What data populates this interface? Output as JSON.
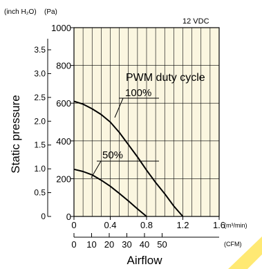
{
  "chart_data": {
    "type": "line",
    "title": "",
    "note": "12 VDC",
    "xlabel": "Airflow",
    "ylabel": "Static pressure",
    "background": "#fbf6e0",
    "line_color": "#000000",
    "watermark_color": "#ffd700",
    "x_axis_primary": {
      "unit": "(m³/min)",
      "range": [
        0,
        1.6
      ],
      "ticks": [
        {
          "value": 0,
          "label": "0"
        },
        {
          "value": 0.4,
          "label": "0.4"
        },
        {
          "value": 0.8,
          "label": "0.8"
        },
        {
          "value": 1.2,
          "label": "1.2"
        },
        {
          "value": 1.6,
          "label": "1.6"
        }
      ]
    },
    "x_axis_secondary": {
      "unit": "(CFM)",
      "ticks": [
        "0",
        "10",
        "20",
        "30",
        "40",
        "50"
      ]
    },
    "y_axis_primary": {
      "unit": "(Pa)",
      "range": [
        0,
        1000
      ],
      "ticks": [
        {
          "value": 0,
          "label": "0"
        },
        {
          "value": 200,
          "label": "200"
        },
        {
          "value": 400,
          "label": "400"
        },
        {
          "value": 600,
          "label": "600"
        },
        {
          "value": 800,
          "label": "800"
        },
        {
          "value": 1000,
          "label": "1000"
        }
      ]
    },
    "y_axis_secondary": {
      "unit": "(inch H₂O)",
      "ticks": [
        "0",
        "0.5",
        "1.0",
        "1.5",
        "2.0",
        "2.5",
        "3.0",
        "3.5"
      ]
    },
    "legend_title": "PWM duty cycle",
    "series": [
      {
        "name": "100%",
        "x": [
          0,
          0.1,
          0.2,
          0.3,
          0.4,
          0.5,
          0.6,
          0.7,
          0.8,
          0.9,
          1.0,
          1.1,
          1.2
        ],
        "y": [
          610,
          595,
          570,
          540,
          500,
          445,
          380,
          315,
          245,
          180,
          120,
          55,
          0
        ]
      },
      {
        "name": "50%",
        "x": [
          0,
          0.1,
          0.2,
          0.3,
          0.4,
          0.5,
          0.6,
          0.7,
          0.8
        ],
        "y": [
          250,
          238,
          220,
          192,
          160,
          122,
          82,
          40,
          0
        ]
      }
    ]
  }
}
